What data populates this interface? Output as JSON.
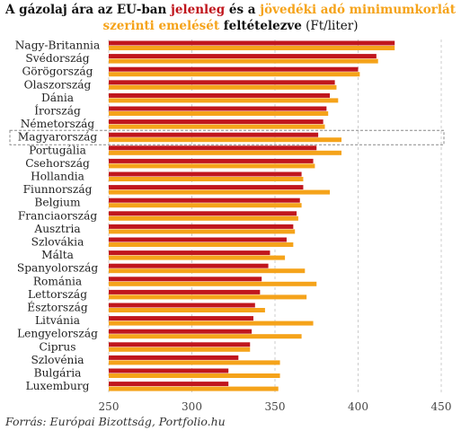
{
  "title": {
    "part1": "A gázolaj ára az EU-ban ",
    "current": "jelenleg",
    "part2": " és a ",
    "excise_line1": "jövedéki adó minimumkorlát",
    "excise_line2": "szerinti emelését",
    "part3": " feltételezve",
    "unit": " (Ft/liter)"
  },
  "source": "Forrás: Európai Bizottság, Portfolio.hu",
  "colors": {
    "current": "#c0161d",
    "excise": "#f5a31a",
    "grid": "#cccccc"
  },
  "chart_data": {
    "type": "bar",
    "orientation": "horizontal",
    "categories": [
      "Nagy-Britannia",
      "Svédország",
      "Görögország",
      "Olaszország",
      "Dánia",
      "Írország",
      "Németország",
      "Magyarország",
      "Portugália",
      "Csehország",
      "Hollandia",
      "Fiunnország",
      "Belgium",
      "Franciaország",
      "Ausztria",
      "Szlovákia",
      "Málta",
      "Spanyolország",
      "Románia",
      "Lettország",
      "Észtország",
      "Litvánia",
      "Lengyelország",
      "Ciprus",
      "Szlovénia",
      "Bulgária",
      "Luxemburg"
    ],
    "series": [
      {
        "values": [
          422,
          411,
          400,
          386,
          383,
          381,
          379,
          376,
          375,
          373,
          366,
          367,
          365,
          363,
          361,
          357,
          347,
          346,
          342,
          341,
          338,
          337,
          336,
          335,
          328,
          322,
          322
        ]
      },
      {
        "values": [
          422,
          412,
          401,
          387,
          388,
          382,
          380,
          390,
          390,
          374,
          367,
          383,
          366,
          364,
          362,
          361,
          356,
          368,
          375,
          369,
          344,
          373,
          366,
          335,
          353,
          353,
          352
        ]
      }
    ],
    "xlim": [
      250,
      450
    ],
    "xticks": [
      "250",
      "300",
      "350",
      "400",
      "450"
    ],
    "highlight": "Magyarország",
    "grid": true
  }
}
